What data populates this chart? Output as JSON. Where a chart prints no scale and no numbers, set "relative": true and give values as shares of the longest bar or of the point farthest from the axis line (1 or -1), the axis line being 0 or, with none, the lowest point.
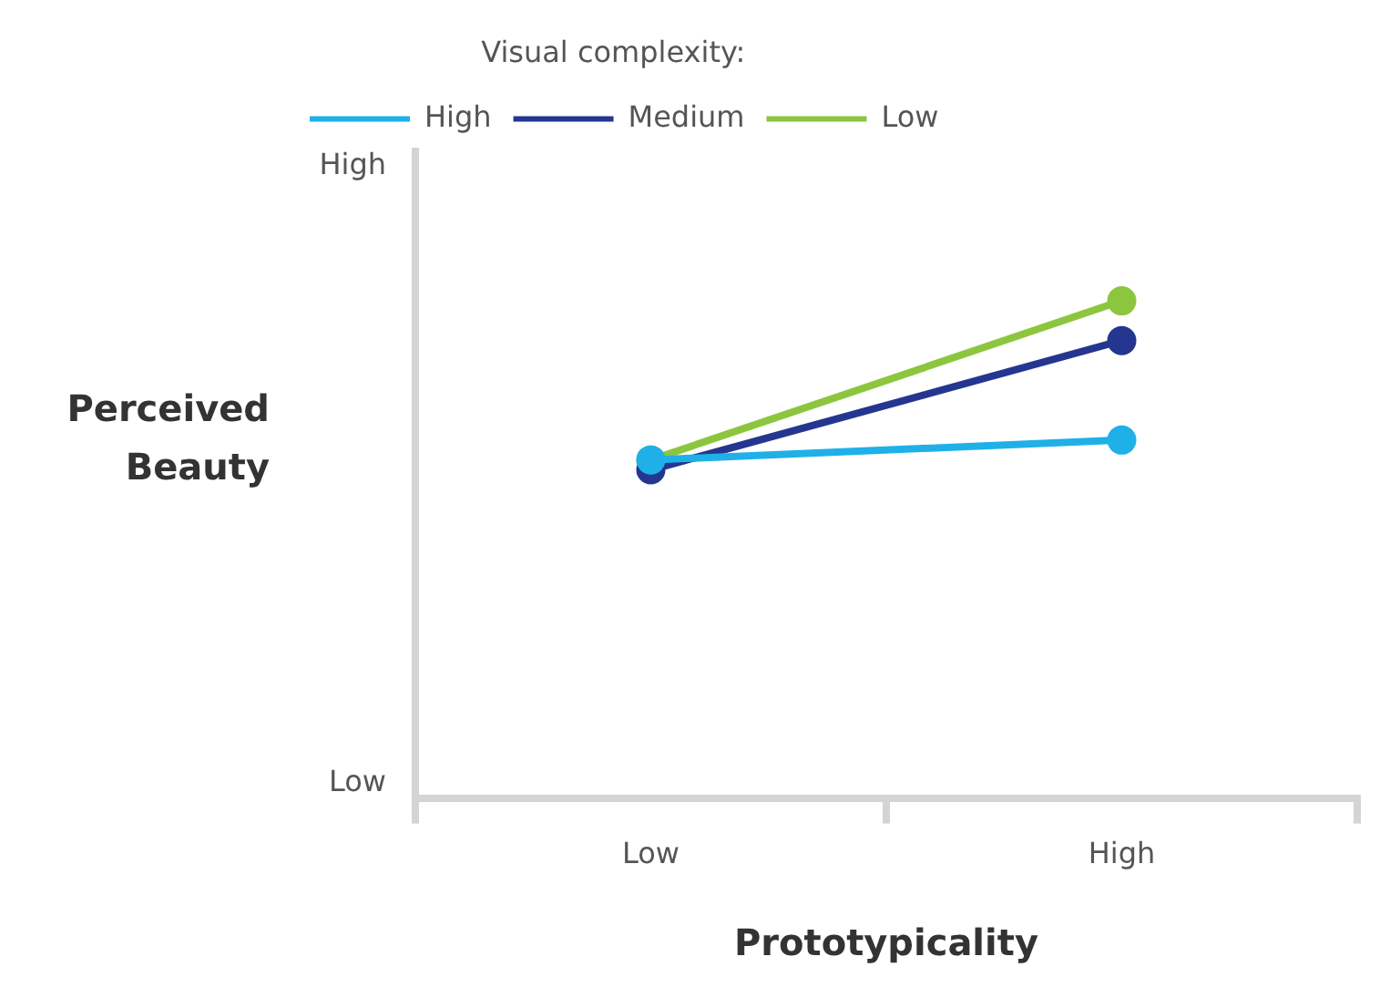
{
  "chart_data": {
    "type": "line",
    "xlabel": "Prototypicality",
    "ylabel": "Perceived Beauty",
    "legend_title": "Visual complexity:",
    "categories": [
      "Low",
      "High"
    ],
    "relative": true,
    "series": [
      {
        "name": "High",
        "color": "#1fb0e8",
        "values": [
          0.68,
          0.72
        ]
      },
      {
        "name": "Medium",
        "color": "#253690",
        "values": [
          0.66,
          0.92
        ]
      },
      {
        "name": "Low",
        "color": "#8cc63f",
        "values": [
          0.68,
          1
        ]
      }
    ],
    "annotations": [
      "High",
      "Low"
    ],
    "grid": false,
    "legend": "top left",
    "marker": "circle",
    "line_style": "solid"
  }
}
